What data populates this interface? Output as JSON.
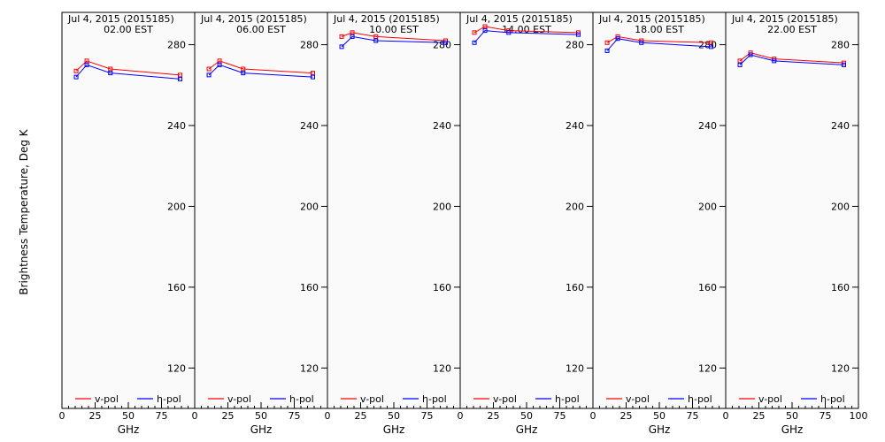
{
  "figure": {
    "ylabel": "Brightness Temperature, Deg K",
    "xlabel": "GHz"
  },
  "colors": {
    "v_pol": "#ff0000",
    "h_pol": "#0000ff",
    "background": "#fafafa"
  },
  "chart_data": [
    {
      "type": "line",
      "title": "Jul  4, 2015 (2015185)",
      "subtitle": "02.00 EST",
      "xlabel": "GHz",
      "ylabel": "Brightness Temperature, Deg K",
      "xlim": [
        0,
        100
      ],
      "ylim": [
        100,
        296
      ],
      "xticks": [
        0,
        25,
        50,
        75
      ],
      "yticks": [
        120,
        160,
        200,
        240,
        280
      ],
      "legend": "bottom",
      "x": [
        10.7,
        18.7,
        36.5,
        89.0
      ],
      "series": [
        {
          "name": "v-pol",
          "values": [
            267,
            272,
            268,
            265
          ]
        },
        {
          "name": "h-pol",
          "values": [
            264,
            270,
            266,
            263
          ]
        }
      ]
    },
    {
      "type": "line",
      "title": "Jul  4, 2015 (2015185)",
      "subtitle": "06.00 EST",
      "xlabel": "GHz",
      "xlim": [
        0,
        100
      ],
      "ylim": [
        100,
        296
      ],
      "xticks": [
        0,
        25,
        50,
        75
      ],
      "yticks": [
        120,
        160,
        200,
        240,
        280
      ],
      "legend": "bottom",
      "x": [
        10.7,
        18.7,
        36.5,
        89.0
      ],
      "series": [
        {
          "name": "v-pol",
          "values": [
            268,
            272,
            268,
            266
          ]
        },
        {
          "name": "h-pol",
          "values": [
            265,
            270,
            266,
            264
          ]
        }
      ]
    },
    {
      "type": "line",
      "title": "Jul  4, 2015 (2015185)",
      "subtitle": "10.00 EST",
      "xlabel": "GHz",
      "xlim": [
        0,
        100
      ],
      "ylim": [
        100,
        296
      ],
      "xticks": [
        0,
        25,
        50,
        75
      ],
      "yticks": [
        120,
        160,
        200,
        240,
        280
      ],
      "legend": "bottom",
      "x": [
        10.7,
        18.7,
        36.5,
        89.0
      ],
      "series": [
        {
          "name": "v-pol",
          "values": [
            284,
            286,
            284,
            282
          ]
        },
        {
          "name": "h-pol",
          "values": [
            279,
            284,
            282,
            281
          ]
        }
      ]
    },
    {
      "type": "line",
      "title": "Jul  4, 2015 (2015185)",
      "subtitle": "14.00 EST",
      "xlabel": "GHz",
      "xlim": [
        0,
        100
      ],
      "ylim": [
        100,
        296
      ],
      "xticks": [
        0,
        25,
        50,
        75
      ],
      "yticks": [
        120,
        160,
        200,
        240,
        280
      ],
      "legend": "bottom",
      "x": [
        10.7,
        18.7,
        36.5,
        89.0
      ],
      "series": [
        {
          "name": "v-pol",
          "values": [
            286,
            289,
            287,
            286
          ]
        },
        {
          "name": "h-pol",
          "values": [
            281,
            287,
            286,
            285
          ]
        }
      ]
    },
    {
      "type": "line",
      "title": "Jul  4, 2015 (2015185)",
      "subtitle": "18.00 EST",
      "xlabel": "GHz",
      "xlim": [
        0,
        100
      ],
      "ylim": [
        100,
        296
      ],
      "xticks": [
        0,
        25,
        50,
        75
      ],
      "yticks": [
        120,
        160,
        200,
        240,
        280
      ],
      "legend": "bottom",
      "x": [
        10.7,
        18.7,
        36.5,
        89.0
      ],
      "series": [
        {
          "name": "v-pol",
          "values": [
            281,
            284,
            282,
            281
          ]
        },
        {
          "name": "h-pol",
          "values": [
            277,
            283,
            281,
            279
          ]
        }
      ]
    },
    {
      "type": "line",
      "title": "Jul  4, 2015 (2015185)",
      "subtitle": "22.00 EST",
      "xlabel": "GHz",
      "xlim": [
        0,
        100
      ],
      "ylim": [
        100,
        296
      ],
      "xticks": [
        0,
        25,
        50,
        75,
        100
      ],
      "yticks": [
        120,
        160,
        200,
        240,
        280
      ],
      "legend": "bottom",
      "x": [
        10.7,
        18.7,
        36.5,
        89.0
      ],
      "series": [
        {
          "name": "v-pol",
          "values": [
            272,
            276,
            273,
            271
          ]
        },
        {
          "name": "h-pol",
          "values": [
            270,
            275,
            272,
            270
          ]
        }
      ]
    }
  ]
}
